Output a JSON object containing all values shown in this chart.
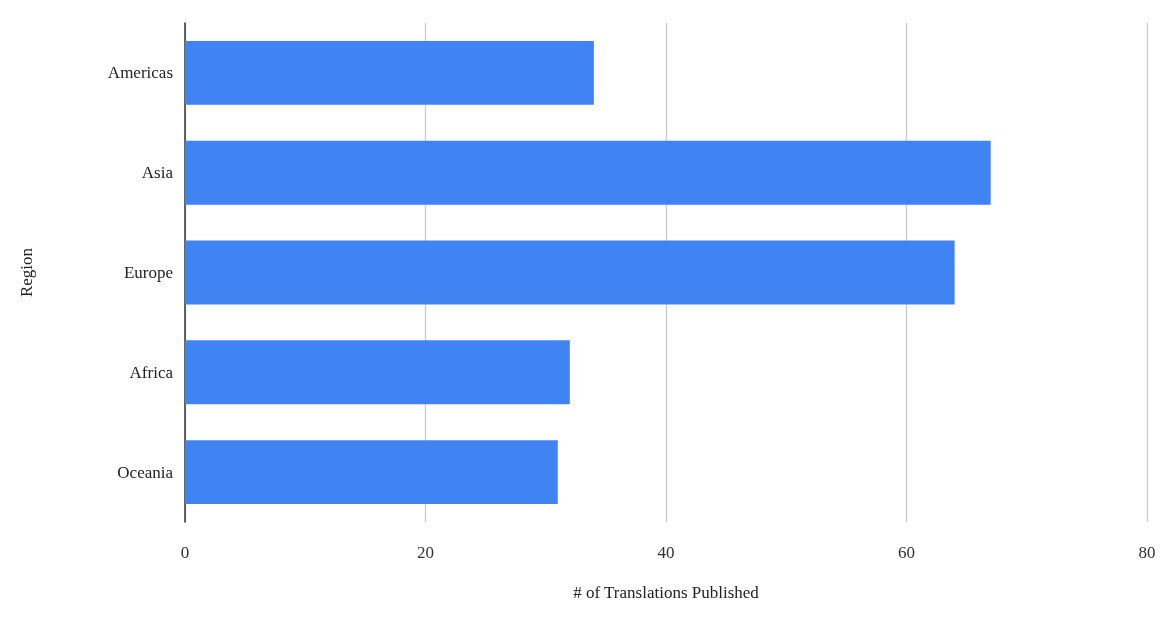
{
  "chart_data": {
    "type": "bar",
    "orientation": "horizontal",
    "xlabel": "# of Translations Published",
    "ylabel": "Region",
    "categories": [
      "Americas",
      "Asia",
      "Europe",
      "Africa",
      "Oceania"
    ],
    "values": [
      34,
      67,
      64,
      32,
      31
    ],
    "color": "#3f84f2",
    "xlim": [
      0,
      80
    ],
    "xticks": [
      0,
      20,
      40,
      60,
      80
    ],
    "grid": "x"
  }
}
